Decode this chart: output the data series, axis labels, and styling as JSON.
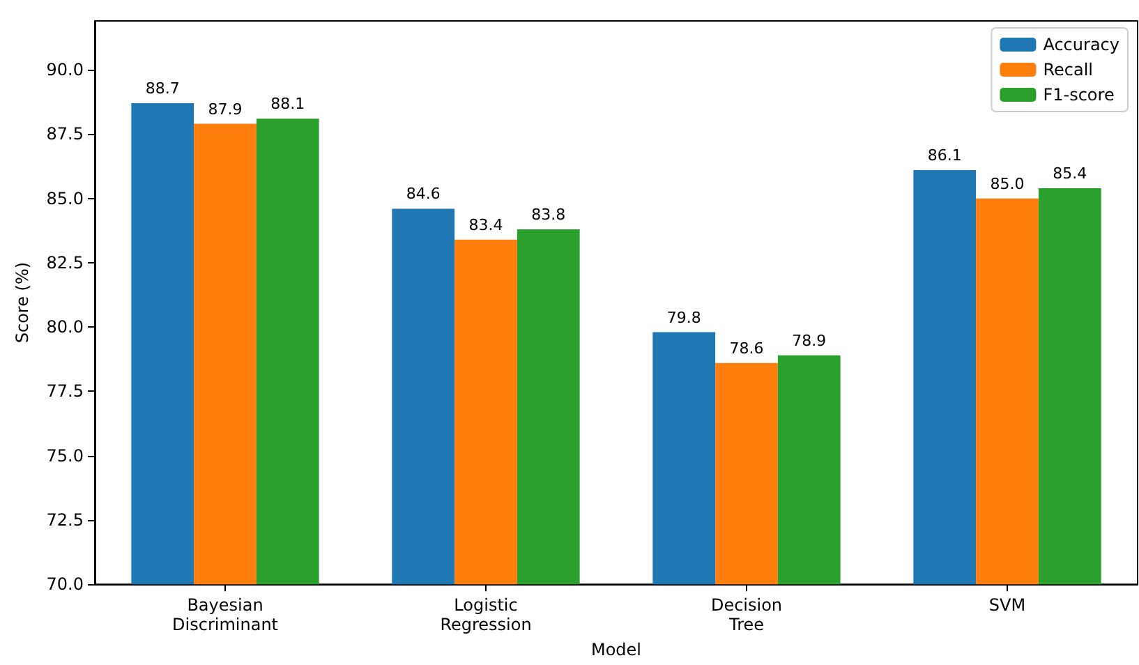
{
  "chart_data": {
    "type": "bar",
    "xlabel": "Model",
    "ylabel": "Score (%)",
    "categories": [
      "Bayesian\nDiscriminant",
      "Logistic\nRegression",
      "Decision\nTree",
      "SVM"
    ],
    "series": [
      {
        "name": "Accuracy",
        "color": "#1f77b4",
        "values": [
          88.7,
          84.6,
          79.8,
          86.1
        ],
        "value_labels": [
          "88.7",
          "84.6",
          "79.8",
          "86.1"
        ]
      },
      {
        "name": "Recall",
        "color": "#ff7f0e",
        "values": [
          87.9,
          83.4,
          78.6,
          85.0
        ],
        "value_labels": [
          "87.9",
          "83.4",
          "78.6",
          "85.0"
        ]
      },
      {
        "name": "F1-score",
        "color": "#2ca02c",
        "values": [
          88.1,
          83.8,
          78.9,
          85.4
        ],
        "value_labels": [
          "88.1",
          "83.8",
          "78.9",
          "85.4"
        ]
      }
    ],
    "ylim": [
      70,
      91.9
    ],
    "yticks": [
      {
        "value": 70,
        "label": "70.0"
      },
      72.5,
      {
        "value": 75,
        "label": "75.0"
      },
      77.5,
      {
        "value": 80,
        "label": "80.0"
      },
      82.5,
      {
        "value": 85,
        "label": "85.0"
      },
      87.5,
      {
        "value": 90,
        "label": "90.0"
      }
    ],
    "legend": "top right",
    "grid": false
  }
}
